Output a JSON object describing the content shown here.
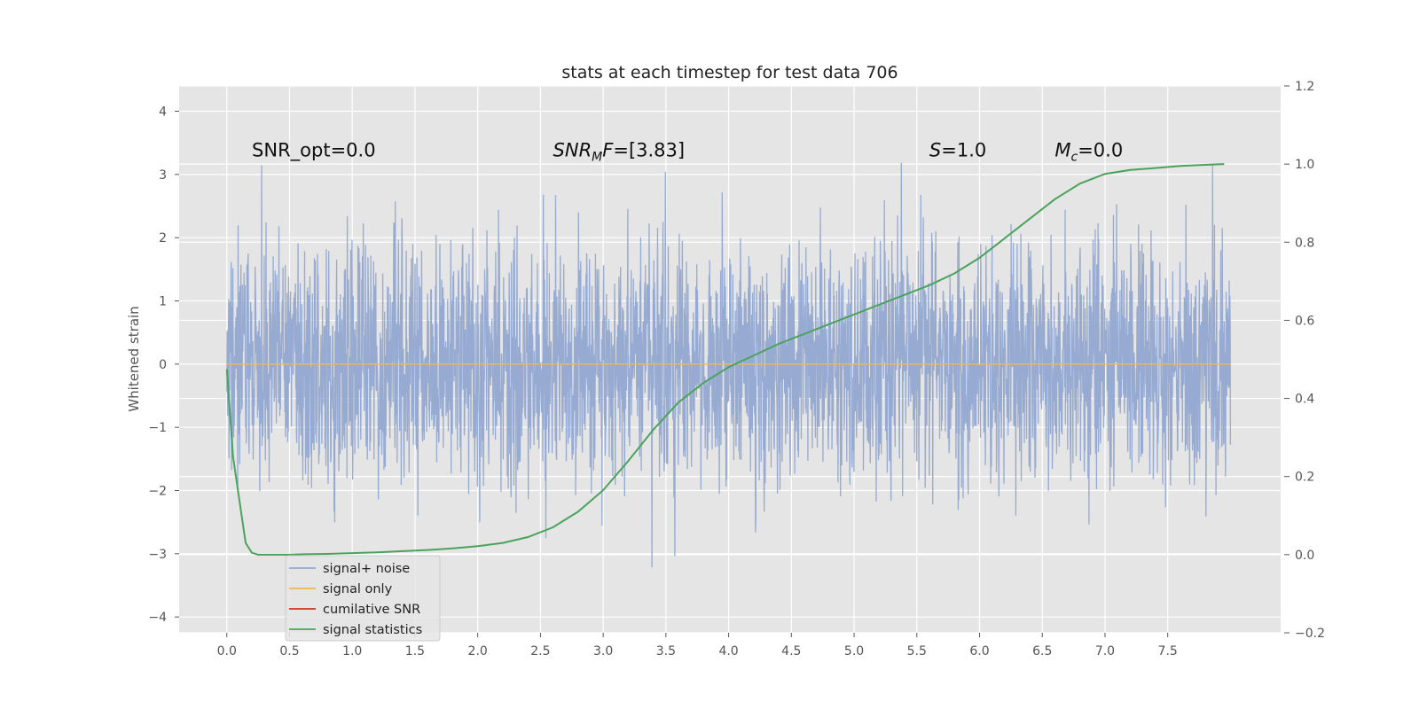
{
  "chart_data": {
    "type": "line",
    "title": "stats at each timestep for test data 706",
    "ylabel": "Whitened strain",
    "xlim": [
      -0.38,
      8.4
    ],
    "ylim": [
      -4.25,
      4.4
    ],
    "ylim_right": [
      -0.2,
      1.2
    ],
    "x_ticks": [
      0.0,
      0.5,
      1.0,
      1.5,
      2.0,
      2.5,
      3.0,
      3.5,
      4.0,
      4.5,
      5.0,
      5.5,
      6.0,
      6.5,
      7.0,
      7.5
    ],
    "x_tick_labels": [
      "0.0",
      "0.5",
      "1.0",
      "1.5",
      "2.0",
      "2.5",
      "3.0",
      "3.5",
      "4.0",
      "4.5",
      "5.0",
      "5.5",
      "6.0",
      "6.5",
      "7.0",
      "7.5"
    ],
    "y_ticks": [
      -4,
      -3,
      -2,
      -1,
      0,
      1,
      2,
      3,
      4
    ],
    "y_tick_labels": [
      "−4",
      "−3",
      "−2",
      "−1",
      "0",
      "1",
      "2",
      "3",
      "4"
    ],
    "y_ticks_right": [
      -0.2,
      0.0,
      0.2,
      0.4,
      0.6,
      0.8,
      1.0,
      1.2
    ],
    "y_tick_labels_right": [
      "−0.2",
      "0.0",
      "0.2",
      "0.4",
      "0.6",
      "0.8",
      "1.0",
      "1.2"
    ],
    "grid": true,
    "legend_position": "lower-left",
    "noise_x_range": [
      0.0,
      8.0
    ],
    "noise_std": 0.95,
    "annotations": [
      {
        "x": 0.2,
        "y": 3.2,
        "text": "SNR_opt=0.0"
      },
      {
        "x": 2.6,
        "y": 3.2,
        "text": "SNRₘF=[3.83]",
        "rich": "snrmf"
      },
      {
        "x": 5.6,
        "y": 3.2,
        "text": "S=1.0",
        "rich": "s"
      },
      {
        "x": 6.6,
        "y": 3.2,
        "text": "Mᴄ=0.0",
        "rich": "mc"
      }
    ],
    "series": [
      {
        "name": "signal+ noise",
        "color": "#92a8d1",
        "axis": "left",
        "kind": "noise"
      },
      {
        "name": "signal only",
        "color": "#f0b84f",
        "axis": "left",
        "x": [
          0.0,
          8.0
        ],
        "y": [
          0.0,
          0.0
        ]
      },
      {
        "name": "cumilative SNR",
        "color": "#d62d20",
        "axis": "left",
        "x": [],
        "y": []
      },
      {
        "name": "signal statistics",
        "color": "#4aa35c",
        "axis": "right",
        "x": [
          0.0,
          0.05,
          0.1,
          0.15,
          0.2,
          0.25,
          0.3,
          0.4,
          0.5,
          0.6,
          0.8,
          1.0,
          1.2,
          1.4,
          1.6,
          1.8,
          2.0,
          2.2,
          2.4,
          2.6,
          2.8,
          3.0,
          3.2,
          3.4,
          3.6,
          3.8,
          4.0,
          4.2,
          4.4,
          4.6,
          4.8,
          5.0,
          5.2,
          5.4,
          5.6,
          5.8,
          6.0,
          6.2,
          6.4,
          6.6,
          6.8,
          7.0,
          7.2,
          7.4,
          7.6,
          7.8,
          7.95
        ],
        "y": [
          0.475,
          0.25,
          0.14,
          0.03,
          0.005,
          0.0,
          0.0,
          0.0,
          0.0,
          0.001,
          0.002,
          0.004,
          0.006,
          0.009,
          0.012,
          0.016,
          0.022,
          0.03,
          0.045,
          0.07,
          0.11,
          0.165,
          0.24,
          0.32,
          0.39,
          0.44,
          0.48,
          0.51,
          0.54,
          0.565,
          0.59,
          0.615,
          0.64,
          0.665,
          0.69,
          0.72,
          0.76,
          0.81,
          0.86,
          0.91,
          0.95,
          0.975,
          0.985,
          0.99,
          0.995,
          0.998,
          1.0
        ]
      }
    ]
  }
}
